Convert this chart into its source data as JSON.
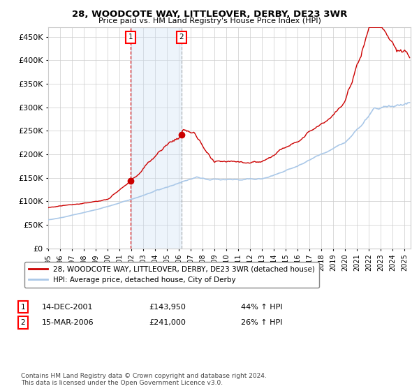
{
  "title": "28, WOODCOTE WAY, LITTLEOVER, DERBY, DE23 3WR",
  "subtitle": "Price paid vs. HM Land Registry's House Price Index (HPI)",
  "background_color": "#ffffff",
  "grid_color": "#cccccc",
  "plot_bg_color": "#ffffff",
  "red_line_color": "#cc0000",
  "blue_line_color": "#aac8e8",
  "sale1_date_num": 2001.958,
  "sale1_price": 143950,
  "sale1_label": "14-DEC-2001",
  "sale1_hpi": "44% ↑ HPI",
  "sale2_date_num": 2006.208,
  "sale2_price": 241000,
  "sale2_label": "15-MAR-2006",
  "sale2_hpi": "26% ↑ HPI",
  "vline1_color": "#dd0000",
  "vline2_color": "#999999",
  "shade_color": "#cce0f5",
  "xmin": 1995,
  "xmax": 2025.5,
  "ymin": 0,
  "ymax": 470000,
  "yticks": [
    0,
    50000,
    100000,
    150000,
    200000,
    250000,
    300000,
    350000,
    400000,
    450000
  ],
  "footnote": "Contains HM Land Registry data © Crown copyright and database right 2024.\nThis data is licensed under the Open Government Licence v3.0.",
  "legend1": "28, WOODCOTE WAY, LITTLEOVER, DERBY, DE23 3WR (detached house)",
  "legend2": "HPI: Average price, detached house, City of Derby"
}
